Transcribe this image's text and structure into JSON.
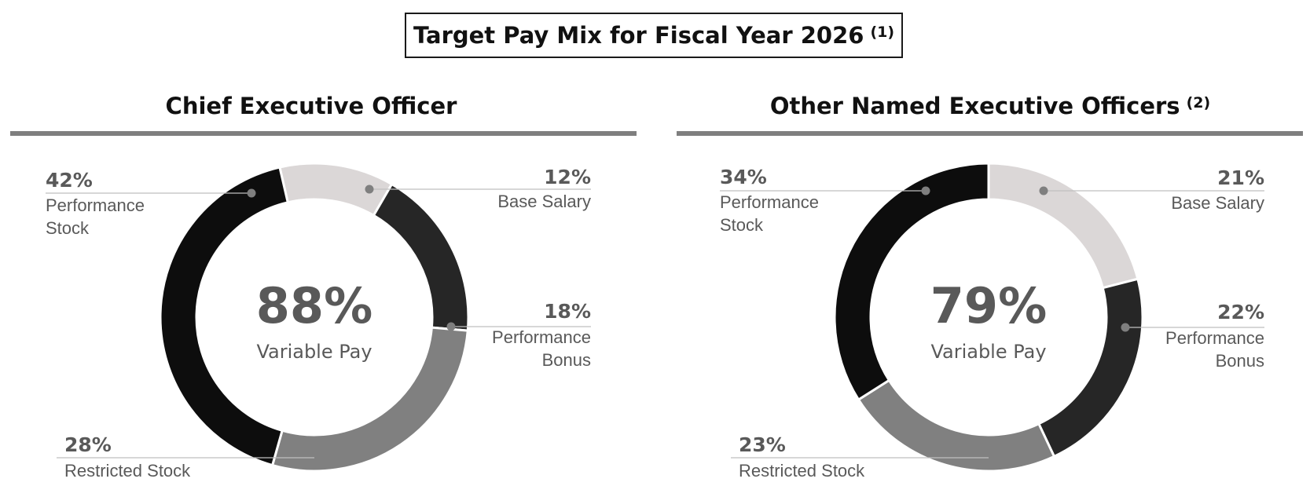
{
  "title": "Target Pay Mix for Fiscal Year 2026",
  "title_note": "(1)",
  "colors": {
    "Base Salary": "#dbd7d7",
    "Performance Bonus": "#262626",
    "Restricted Stock": "#808080",
    "Performance Stock": "#0d0d0d"
  },
  "chart_data": [
    {
      "type": "pie",
      "title": "Chief Executive Officer",
      "title_note": "",
      "center_value": "88%",
      "center_label": "Variable Pay",
      "slices": [
        {
          "label": "Base Salary",
          "value": 12,
          "value_label": "12%"
        },
        {
          "label": "Performance Bonus",
          "value": 18,
          "value_label": "18%"
        },
        {
          "label": "Restricted Stock",
          "value": 28,
          "value_label": "28%"
        },
        {
          "label": "Performance Stock",
          "value": 42,
          "value_label": "42%"
        }
      ]
    },
    {
      "type": "pie",
      "title": "Other Named Executive Officers",
      "title_note": "(2)",
      "center_value": "79%",
      "center_label": "Variable Pay",
      "slices": [
        {
          "label": "Base Salary",
          "value": 21,
          "value_label": "21%"
        },
        {
          "label": "Performance Bonus",
          "value": 22,
          "value_label": "22%"
        },
        {
          "label": "Restricted Stock",
          "value": 23,
          "value_label": "23%"
        },
        {
          "label": "Performance Stock",
          "value": 34,
          "value_label": "34%"
        }
      ]
    }
  ]
}
